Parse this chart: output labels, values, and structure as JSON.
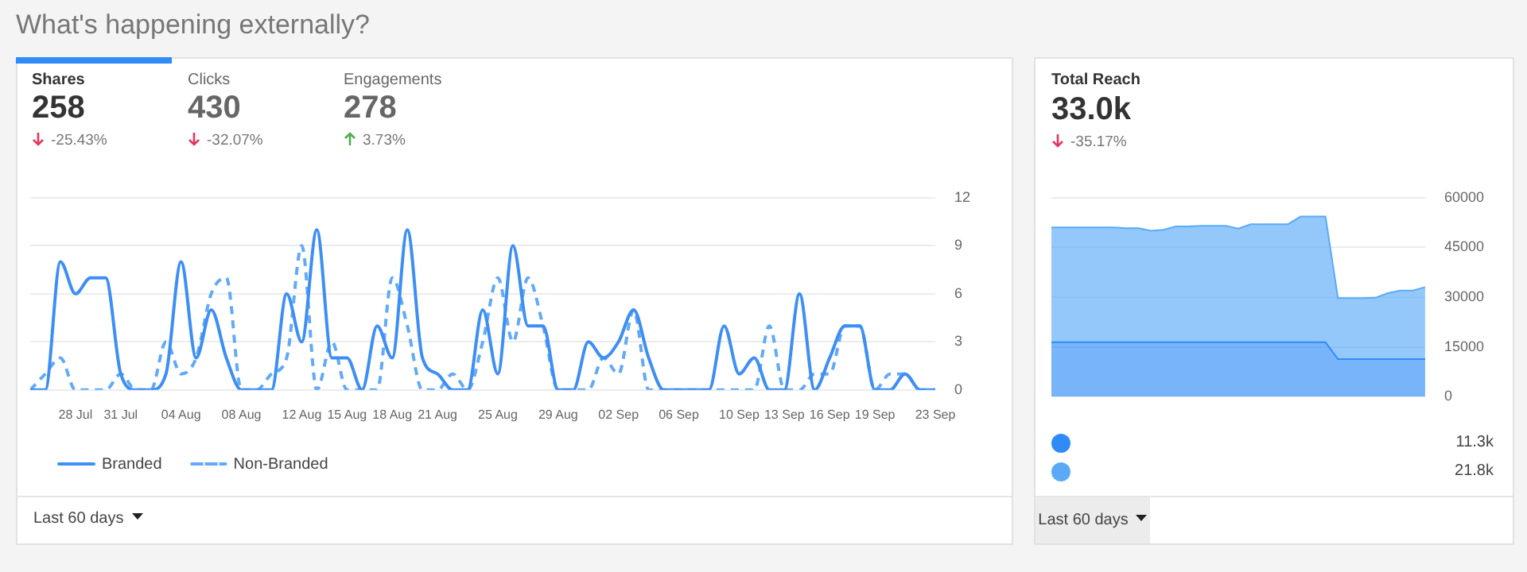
{
  "chart_data": [
    {
      "type": "line",
      "title": "What's happening externally?",
      "annotations": [
        "Shares",
        "258",
        "-25.43%",
        "Clicks",
        "430",
        "-32.07%",
        "Engagements",
        "278",
        "3.73%",
        "Last 60 days"
      ],
      "x": [
        "--07-25",
        "--07-26",
        "--07-27",
        "--07-28",
        "--07-29",
        "--07-30",
        "--07-31",
        "--08-01",
        "--08-02",
        "--08-03",
        "--08-04",
        "--08-05",
        "--08-06",
        "--08-07",
        "--08-08",
        "--08-09",
        "--08-10",
        "--08-11",
        "--08-12",
        "--08-13",
        "--08-14",
        "--08-15",
        "--08-16",
        "--08-17",
        "--08-18",
        "--08-19",
        "--08-20",
        "--08-21",
        "--08-22",
        "--08-23",
        "--08-24",
        "--08-25",
        "--08-26",
        "--08-27",
        "--08-28",
        "--08-29",
        "--08-30",
        "--08-31",
        "--09-01",
        "--09-02",
        "--09-03",
        "--09-04",
        "--09-05",
        "--09-06",
        "--09-07",
        "--09-08",
        "--09-09",
        "--09-10",
        "--09-11",
        "--09-12",
        "--09-13",
        "--09-14",
        "--09-15",
        "--09-16",
        "--09-17",
        "--09-18",
        "--09-19",
        "--09-20",
        "--09-21",
        "--09-22",
        "--09-23"
      ],
      "series": [
        {
          "name": "Branded",
          "color": "#3d8ef5",
          "line_style": "solid",
          "values": [
            0,
            0,
            8,
            6,
            7,
            7,
            1,
            0,
            0,
            1,
            8,
            2,
            5,
            2,
            0,
            0,
            0,
            6,
            3,
            10,
            2,
            2,
            0,
            4,
            2,
            10,
            2,
            1,
            0,
            0,
            5,
            1,
            9,
            4,
            4,
            0,
            0,
            3,
            2,
            3,
            5,
            2,
            0,
            0,
            0,
            0,
            4,
            1,
            2,
            0,
            0,
            6,
            0,
            2,
            4,
            4,
            0,
            0,
            1,
            0,
            0
          ]
        },
        {
          "name": "Non-Branded",
          "color": "#62aaf7",
          "line_style": "dashed",
          "values": [
            0,
            1,
            2,
            0,
            0,
            0,
            1,
            0,
            0,
            3,
            1,
            2,
            6,
            7,
            0,
            0,
            1,
            2,
            9,
            0,
            3,
            0,
            0,
            0,
            7,
            4,
            0,
            0,
            1,
            0,
            3,
            7,
            3,
            7,
            4,
            0,
            0,
            0,
            2,
            1,
            5,
            0,
            0,
            0,
            0,
            0,
            0,
            0,
            0,
            4,
            0,
            0,
            1,
            1,
            4,
            4,
            0,
            1,
            1,
            0,
            0
          ]
        }
      ],
      "xlim": [
        "--07-25",
        "--09-23"
      ],
      "xticks": [
        {
          "value": "--07-28",
          "label": "28 Jul"
        },
        {
          "value": "--07-31",
          "label": "31 Jul"
        },
        {
          "value": "--08-04",
          "label": "04 Aug"
        },
        {
          "value": "--08-08",
          "label": "08 Aug"
        },
        {
          "value": "--08-12",
          "label": "12 Aug"
        },
        {
          "value": "--08-15",
          "label": "15 Aug"
        },
        {
          "value": "--08-18",
          "label": "18 Aug"
        },
        {
          "value": "--08-21",
          "label": "21 Aug"
        },
        {
          "value": "--08-25",
          "label": "25 Aug"
        },
        {
          "value": "--08-29",
          "label": "29 Aug"
        },
        {
          "value": "--09-02",
          "label": "02 Sep"
        },
        {
          "value": "--09-06",
          "label": "06 Sep"
        },
        {
          "value": "--09-10",
          "label": "10 Sep"
        },
        {
          "value": "--09-13",
          "label": "13 Sep"
        },
        {
          "value": "--09-16",
          "label": "16 Sep"
        },
        {
          "value": "--09-19",
          "label": "19 Sep"
        },
        {
          "value": "--09-23",
          "label": "23 Sep"
        }
      ],
      "ylim": [
        0,
        12
      ],
      "yticks": [
        0,
        3,
        6,
        9,
        12
      ],
      "grid": "y",
      "legend": "bottom left",
      "marker": "none"
    },
    {
      "type": "area",
      "title": "Total Reach",
      "subtitle": "33.0k",
      "annotations": [
        "-35.17%",
        "11.3k",
        "21.8k",
        "Last 60 days"
      ],
      "categories": [
        null,
        null,
        null,
        null,
        null,
        null,
        null,
        null,
        null,
        null,
        null,
        null,
        null,
        null,
        null,
        null,
        null,
        null,
        null,
        null,
        null,
        null,
        null,
        null,
        null,
        null,
        null,
        null,
        null,
        null,
        null
      ],
      "stacked": true,
      "series": [
        {
          "color": "#2f8cf7",
          "values": [
            16400,
            16400,
            16400,
            16400,
            16400,
            16400,
            16400,
            16400,
            16400,
            16400,
            16400,
            16400,
            16400,
            16400,
            16400,
            16400,
            16400,
            16400,
            16400,
            16400,
            16400,
            16400,
            16400,
            11300,
            11300,
            11300,
            11300,
            11300,
            11300,
            11300,
            11300
          ]
        },
        {
          "color": "#5aaaf8",
          "values": [
            34600,
            34600,
            34600,
            34600,
            34600,
            34600,
            34400,
            34400,
            33600,
            33900,
            34900,
            34900,
            35100,
            35100,
            35100,
            34300,
            35600,
            35600,
            35600,
            35600,
            37900,
            37900,
            37900,
            18400,
            18400,
            18400,
            18500,
            19900,
            20700,
            20700,
            21700
          ]
        }
      ],
      "ylim": [
        0,
        60000
      ],
      "yticks": [
        0,
        15000,
        30000,
        45000,
        60000
      ],
      "grid": "y",
      "tick_labels": "y",
      "legend": false,
      "marker": "none"
    }
  ]
}
